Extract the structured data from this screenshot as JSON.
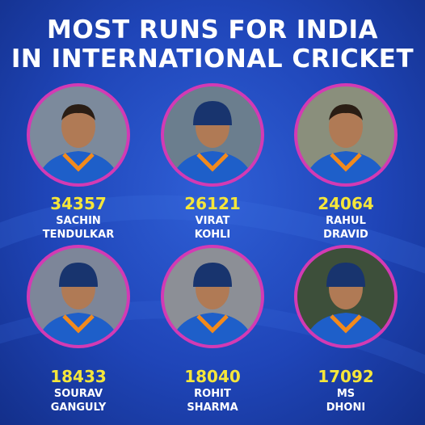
{
  "header": {
    "title_line1": "MOST RUNS FOR INDIA",
    "title_line2": "IN INTERNATIONAL CRICKET"
  },
  "players": [
    {
      "runs": 34357,
      "first": "SACHIN",
      "last": "TENDULKAR"
    },
    {
      "runs": 26121,
      "first": "VIRAT",
      "last": "KOHLI"
    },
    {
      "runs": 24064,
      "first": "RAHUL",
      "last": "DRAVID"
    },
    {
      "runs": 18433,
      "first": "SOURAV",
      "last": "GANGULY"
    },
    {
      "runs": 18040,
      "first": "ROHIT",
      "last": "SHARMA"
    },
    {
      "runs": 17092,
      "first": "MS",
      "last": "DHONI"
    }
  ]
}
